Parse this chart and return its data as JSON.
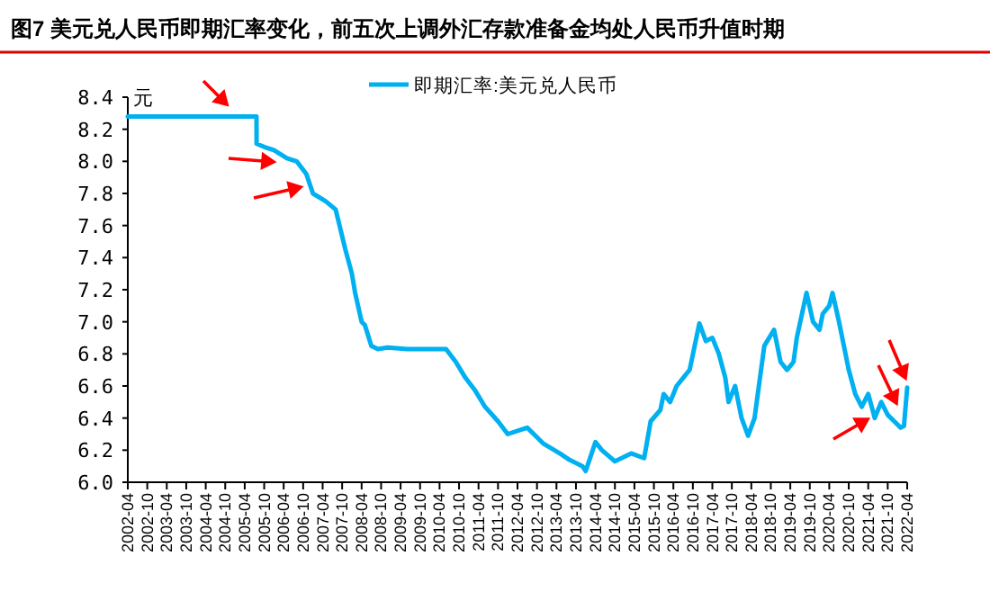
{
  "chart_data": {
    "type": "line",
    "title": "图7  美元兑人民币即期汇率变化，前五次上调外汇存款准备金均处人民币升值时期",
    "ylabel": "元",
    "x": [
      "2002-04",
      "2005-07-20",
      "2005-07-21",
      "2005-10",
      "2006-01",
      "2006-05",
      "2006-08",
      "2006-11",
      "2007-01",
      "2007-05",
      "2007-08",
      "2007-11",
      "2008-01",
      "2008-02",
      "2008-04",
      "2008-05",
      "2008-07",
      "2008-09",
      "2008-12",
      "2009-06",
      "2009-12",
      "2010-06",
      "2010-09",
      "2010-12",
      "2011-03",
      "2011-06",
      "2011-10",
      "2012-01",
      "2012-04",
      "2012-07",
      "2012-10",
      "2012-12",
      "2013-05",
      "2013-08",
      "2013-12",
      "2014-01",
      "2014-04",
      "2014-06",
      "2014-10",
      "2015-03",
      "2015-07",
      "2015-09",
      "2015-12",
      "2016-01",
      "2016-03",
      "2016-05",
      "2016-07",
      "2016-09",
      "2016-12",
      "2017-02",
      "2017-04",
      "2017-06",
      "2017-08",
      "2017-09",
      "2017-11",
      "2018-01",
      "2018-03",
      "2018-05",
      "2018-07",
      "2018-08",
      "2018-11",
      "2019-01",
      "2019-03",
      "2019-05",
      "2019-06",
      "2019-09",
      "2019-11",
      "2020-01",
      "2020-02",
      "2020-04",
      "2020-05",
      "2020-07",
      "2020-09",
      "2020-10",
      "2020-12",
      "2021-02",
      "2021-04",
      "2021-06",
      "2021-08",
      "2021-10",
      "2021-12",
      "2022-02",
      "2022-03",
      "2022-04"
    ],
    "xlim": [
      "2002-04",
      "2022-04"
    ],
    "xticks": [
      "2002-04",
      "2002-10",
      "2003-04",
      "2003-10",
      "2004-04",
      "2004-10",
      "2005-04",
      "2005-10",
      "2006-04",
      "2006-10",
      "2007-04",
      "2007-10",
      "2008-04",
      "2008-10",
      "2009-04",
      "2009-10",
      "2010-04",
      "2010-10",
      "2011-04",
      "2011-10",
      "2012-04",
      "2012-10",
      "2013-04",
      "2013-10",
      "2014-04",
      "2014-10",
      "2015-04",
      "2015-10",
      "2016-04",
      "2016-10",
      "2017-04",
      "2017-10",
      "2018-04",
      "2018-10",
      "2019-04",
      "2019-10",
      "2020-04",
      "2020-10",
      "2021-04",
      "2021-10",
      "2022-04"
    ],
    "ylim": [
      6.0,
      8.4
    ],
    "yticks": [
      {
        "value": 6.0,
        "label": "6.0"
      },
      {
        "value": 6.2,
        "label": "6.2"
      },
      {
        "value": 6.4,
        "label": "6.4"
      },
      {
        "value": 6.6,
        "label": "6.6"
      },
      {
        "value": 6.8,
        "label": "6.8"
      },
      {
        "value": 7.0,
        "label": "7.0"
      },
      {
        "value": 7.2,
        "label": "7.2"
      },
      {
        "value": 7.4,
        "label": "7.4"
      },
      {
        "value": 7.6,
        "label": "7.6"
      },
      {
        "value": 7.8,
        "label": "7.8"
      },
      {
        "value": 8.0,
        "label": "8.0"
      },
      {
        "value": 8.2,
        "label": "8.2"
      },
      {
        "value": 8.4,
        "label": "8.4"
      }
    ],
    "series": [
      {
        "name": "即期汇率:美元兑人民币",
        "color": "#00b0f0",
        "values": [
          8.28,
          8.28,
          8.11,
          8.09,
          8.07,
          8.02,
          8.0,
          7.92,
          7.8,
          7.75,
          7.7,
          7.45,
          7.3,
          7.18,
          7.0,
          6.98,
          6.85,
          6.83,
          6.84,
          6.83,
          6.83,
          6.83,
          6.75,
          6.65,
          6.57,
          6.47,
          6.38,
          6.3,
          6.32,
          6.34,
          6.28,
          6.24,
          6.18,
          6.14,
          6.1,
          6.07,
          6.25,
          6.2,
          6.13,
          6.18,
          6.15,
          6.38,
          6.45,
          6.55,
          6.5,
          6.6,
          6.65,
          6.7,
          6.99,
          6.88,
          6.9,
          6.8,
          6.65,
          6.5,
          6.6,
          6.4,
          6.29,
          6.4,
          6.7,
          6.85,
          6.95,
          6.75,
          6.7,
          6.75,
          6.9,
          7.18,
          7.0,
          6.95,
          7.05,
          7.1,
          7.18,
          7.0,
          6.8,
          6.7,
          6.55,
          6.47,
          6.55,
          6.4,
          6.5,
          6.42,
          6.38,
          6.34,
          6.35,
          6.59
        ]
      }
    ],
    "legend": "top",
    "grid": false
  }
}
